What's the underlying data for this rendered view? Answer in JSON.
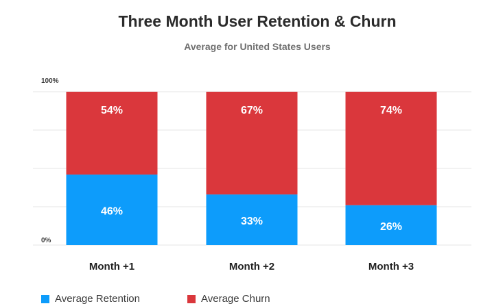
{
  "chart_data": {
    "type": "bar",
    "stacked": true,
    "title": "Three Month User Retention & Churn",
    "subtitle": "Average for United States Users",
    "categories": [
      "Month +1",
      "Month +2",
      "Month +3"
    ],
    "series": [
      {
        "name": "Average Retention",
        "color": "#0d9cfb",
        "values": [
          46,
          33,
          26
        ],
        "labels": [
          "46%",
          "33%",
          "26%"
        ]
      },
      {
        "name": "Average Churn",
        "color": "#da373c",
        "values": [
          54,
          67,
          74
        ],
        "labels": [
          "54%",
          "67%",
          "74%"
        ]
      }
    ],
    "ylim": [
      0,
      100
    ],
    "ytick_labels": [
      "0%",
      "100%"
    ],
    "grid": true,
    "legend_position": "bottom-left"
  }
}
